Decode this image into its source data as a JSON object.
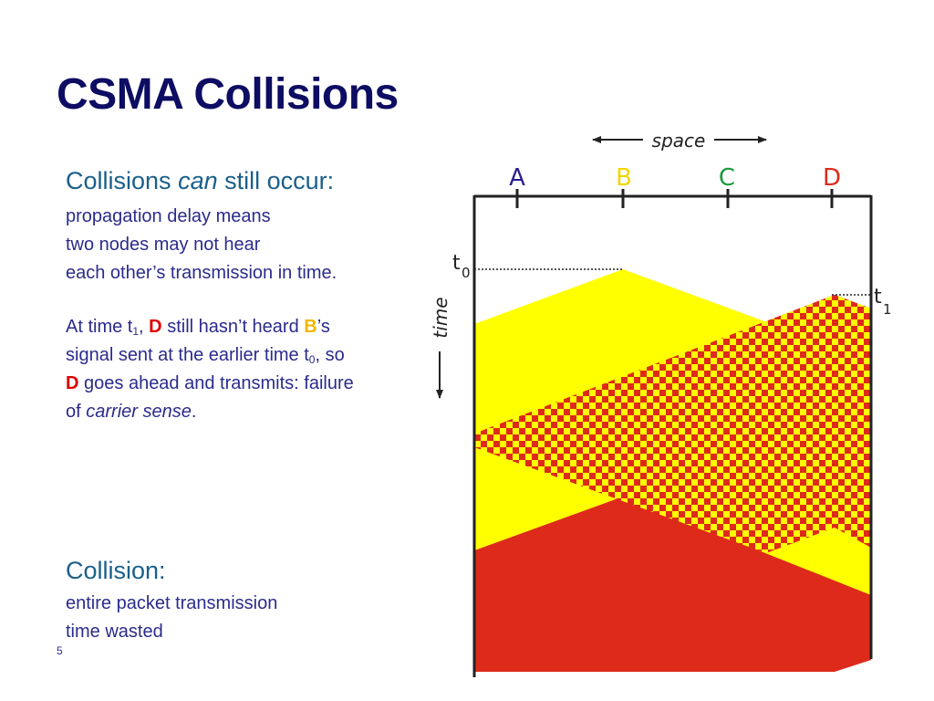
{
  "slide": {
    "title": "CSMA Collisions",
    "number": "5"
  },
  "section1": {
    "heading_pre": "Collisions",
    "heading_em": "can",
    "heading_post": "still occur:",
    "lines": [
      "propagation delay means",
      "two nodes may not hear",
      "each other’s transmission in time."
    ]
  },
  "section2": {
    "p1": "At time t",
    "sub1": "1",
    "p2": ",",
    "d1": "D",
    "p3": "still hasn’t heard",
    "b": "B",
    "p4": "’s",
    "line2a": "signal sent at the earlier time t",
    "sub0": "0",
    "line2b": ", so",
    "d2": "D",
    "line3": "goes ahead and transmits: failure",
    "of": "of",
    "em": "carrier sense",
    "end": "."
  },
  "section3": {
    "heading": "Collision:",
    "lines": [
      "entire packet transmission",
      "time wasted"
    ]
  },
  "diagram": {
    "space_label": "space",
    "time_label": "time",
    "nodes": [
      {
        "label": "A",
        "color": "#2a1f8f"
      },
      {
        "label": "B",
        "color": "#f2d600"
      },
      {
        "label": "C",
        "color": "#1a9a3c"
      },
      {
        "label": "D",
        "color": "#dd2a1a"
      }
    ],
    "t0": {
      "base": "t",
      "sub": "0"
    },
    "t1": {
      "base": "t",
      "sub": "1"
    },
    "colors": {
      "yellow": "#ffff00",
      "red": "#dd2a1a",
      "line": "#222222"
    }
  }
}
